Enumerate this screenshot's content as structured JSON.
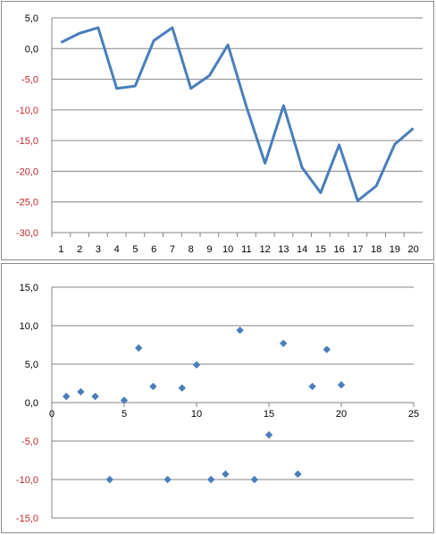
{
  "chart_data": [
    {
      "type": "line",
      "categories": [
        "1",
        "2",
        "3",
        "4",
        "5",
        "6",
        "7",
        "8",
        "9",
        "10",
        "11",
        "12",
        "13",
        "14",
        "15",
        "16",
        "17",
        "18",
        "19",
        "20"
      ],
      "series": [
        {
          "values": [
            1.0,
            2.5,
            3.4,
            -6.5,
            -6.1,
            1.3,
            3.4,
            -6.5,
            -4.4,
            0.6,
            -9.5,
            -18.7,
            -9.3,
            -19.4,
            -23.5,
            -15.7,
            -24.8,
            -22.4,
            -15.6,
            -13.0
          ]
        }
      ],
      "ylim": [
        -30,
        5
      ],
      "yticks": [
        "5,0",
        "0,0",
        "-5,0",
        "-10,0",
        "-15,0",
        "-20,0",
        "-25,0",
        "-30,0"
      ],
      "yticks_values": [
        5,
        0,
        -5,
        -10,
        -15,
        -20,
        -25,
        -30
      ],
      "grid": true,
      "colors": {
        "line": "#4a7ebb",
        "grid": "#868686",
        "tick_positive": "#000000",
        "tick_negative": "#c0272d"
      }
    },
    {
      "type": "scatter",
      "x": [
        1,
        2,
        3,
        4,
        5,
        6,
        7,
        8,
        9,
        10,
        11,
        12,
        13,
        14,
        15,
        16,
        17,
        18,
        19,
        20
      ],
      "y": [
        0.8,
        1.4,
        0.8,
        -10.0,
        0.3,
        7.1,
        2.1,
        -10.0,
        1.9,
        4.9,
        -10.0,
        -9.3,
        9.4,
        -10.0,
        -4.2,
        7.7,
        -9.3,
        2.1,
        6.9,
        2.3
      ],
      "xlim": [
        0,
        25
      ],
      "ylim": [
        -15,
        15
      ],
      "xticks": [
        "0",
        "5",
        "10",
        "15",
        "20",
        "25"
      ],
      "xticks_values": [
        0,
        5,
        10,
        15,
        20,
        25
      ],
      "yticks": [
        "15,0",
        "10,0",
        "5,0",
        "0,0",
        "-5,0",
        "-10,0",
        "-15,0"
      ],
      "yticks_values": [
        15,
        10,
        5,
        0,
        -5,
        -10,
        -15
      ],
      "grid": true,
      "colors": {
        "marker": "#4a7ebb",
        "grid": "#868686",
        "tick_positive": "#000000",
        "tick_negative": "#c0272d"
      }
    }
  ]
}
